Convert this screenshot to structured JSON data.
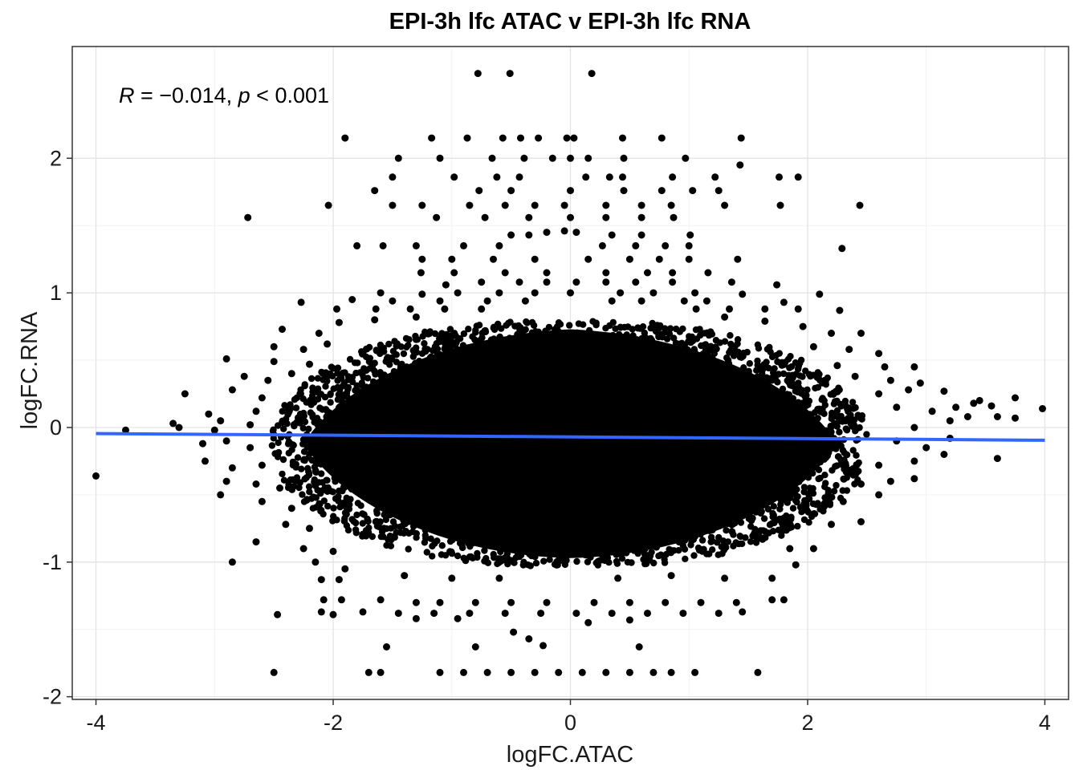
{
  "chart_data": {
    "type": "scatter",
    "title": "EPI-3h lfc ATAC v EPI-3h lfc RNA",
    "xlabel": "logFC.ATAC",
    "ylabel": "logFC.RNA",
    "xlim": [
      -4.2,
      4.2
    ],
    "ylim": [
      -2.02,
      2.83
    ],
    "x_ticks": [
      -4,
      -2,
      0,
      2,
      4
    ],
    "x_tick_labels": [
      "-4",
      "-2",
      "0",
      "2",
      "4"
    ],
    "y_ticks": [
      -2,
      -1,
      0,
      1,
      2
    ],
    "y_tick_labels": [
      "-2",
      "-1",
      "0",
      "1",
      "2"
    ],
    "grid": true,
    "point_color": "#000000",
    "fit_line": {
      "color": "#3366FF",
      "x": [
        -4.0,
        4.0
      ],
      "y": [
        -0.045,
        -0.095
      ]
    },
    "annotation": {
      "r_symbol": "R",
      "equals": " = ",
      "r_value": "−0.014",
      "sep": ", ",
      "p_symbol": "p",
      "p_text": " < 0.001"
    },
    "dense_core": {
      "description_of_values": "elliptical cloud of many thousands of points",
      "center": [
        0.0,
        -0.12
      ],
      "x_halfwidth": 2.25,
      "y_halfheight": 0.85
    },
    "points": [
      [
        -0.78,
        2.63
      ],
      [
        -0.51,
        2.63
      ],
      [
        0.18,
        2.63
      ],
      [
        -1.9,
        2.15
      ],
      [
        -1.17,
        2.15
      ],
      [
        -0.87,
        2.15
      ],
      [
        -0.57,
        2.15
      ],
      [
        -0.42,
        2.15
      ],
      [
        -0.27,
        2.15
      ],
      [
        -0.03,
        2.15
      ],
      [
        0.03,
        2.15
      ],
      [
        0.44,
        2.15
      ],
      [
        0.77,
        2.15
      ],
      [
        1.44,
        2.15
      ],
      [
        -1.45,
        2.0
      ],
      [
        -1.1,
        2.0
      ],
      [
        -0.66,
        2.0
      ],
      [
        -0.39,
        2.0
      ],
      [
        -0.15,
        2.0
      ],
      [
        0.0,
        2.0
      ],
      [
        0.15,
        2.0
      ],
      [
        0.45,
        2.0
      ],
      [
        0.97,
        2.0
      ],
      [
        1.43,
        1.95
      ],
      [
        -1.5,
        1.86
      ],
      [
        -0.98,
        1.86
      ],
      [
        -0.62,
        1.86
      ],
      [
        -0.43,
        1.86
      ],
      [
        0.13,
        1.86
      ],
      [
        0.33,
        1.86
      ],
      [
        0.44,
        1.86
      ],
      [
        0.86,
        1.86
      ],
      [
        1.22,
        1.86
      ],
      [
        1.76,
        1.86
      ],
      [
        1.92,
        1.86
      ],
      [
        -1.65,
        1.76
      ],
      [
        -0.77,
        1.76
      ],
      [
        -0.5,
        1.76
      ],
      [
        0.0,
        1.76
      ],
      [
        0.45,
        1.76
      ],
      [
        0.77,
        1.76
      ],
      [
        1.03,
        1.76
      ],
      [
        1.25,
        1.76
      ],
      [
        -2.04,
        1.65
      ],
      [
        -1.5,
        1.65
      ],
      [
        -1.25,
        1.65
      ],
      [
        -0.85,
        1.65
      ],
      [
        -0.55,
        1.65
      ],
      [
        -0.3,
        1.65
      ],
      [
        -0.05,
        1.65
      ],
      [
        0.3,
        1.65
      ],
      [
        0.6,
        1.65
      ],
      [
        0.85,
        1.65
      ],
      [
        1.3,
        1.65
      ],
      [
        1.77,
        1.65
      ],
      [
        2.44,
        1.65
      ],
      [
        -2.72,
        1.56
      ],
      [
        -1.13,
        1.56
      ],
      [
        -0.72,
        1.56
      ],
      [
        -0.35,
        1.56
      ],
      [
        0.0,
        1.56
      ],
      [
        0.3,
        1.56
      ],
      [
        0.6,
        1.56
      ],
      [
        0.87,
        1.56
      ],
      [
        -0.5,
        1.43
      ],
      [
        -0.35,
        1.43
      ],
      [
        -0.2,
        1.45
      ],
      [
        -0.05,
        1.46
      ],
      [
        0.05,
        1.45
      ],
      [
        0.35,
        1.43
      ],
      [
        0.6,
        1.43
      ],
      [
        1.01,
        1.43
      ],
      [
        -1.8,
        1.35
      ],
      [
        -1.58,
        1.35
      ],
      [
        -1.3,
        1.35
      ],
      [
        -0.9,
        1.35
      ],
      [
        -0.6,
        1.35
      ],
      [
        0.27,
        1.35
      ],
      [
        0.55,
        1.35
      ],
      [
        0.8,
        1.35
      ],
      [
        1.0,
        1.35
      ],
      [
        2.29,
        1.33
      ],
      [
        -1.25,
        1.25
      ],
      [
        -1.0,
        1.25
      ],
      [
        -0.65,
        1.25
      ],
      [
        -0.3,
        1.25
      ],
      [
        0.15,
        1.25
      ],
      [
        0.5,
        1.25
      ],
      [
        0.75,
        1.25
      ],
      [
        1.0,
        1.25
      ],
      [
        1.41,
        1.25
      ],
      [
        -1.26,
        1.15
      ],
      [
        -0.98,
        1.15
      ],
      [
        -0.55,
        1.15
      ],
      [
        -0.2,
        1.15
      ],
      [
        0.3,
        1.15
      ],
      [
        0.65,
        1.15
      ],
      [
        0.86,
        1.15
      ],
      [
        1.16,
        1.15
      ],
      [
        -1.05,
        1.06
      ],
      [
        -0.75,
        1.08
      ],
      [
        -0.43,
        1.08
      ],
      [
        -0.2,
        1.08
      ],
      [
        0.05,
        1.08
      ],
      [
        0.3,
        1.08
      ],
      [
        0.55,
        1.08
      ],
      [
        0.86,
        1.08
      ],
      [
        1.36,
        1.08
      ],
      [
        1.74,
        1.06
      ],
      [
        -1.6,
        1.0
      ],
      [
        -1.25,
        0.99
      ],
      [
        -0.95,
        1.0
      ],
      [
        -0.6,
        1.0
      ],
      [
        -0.3,
        1.0
      ],
      [
        0.0,
        1.0
      ],
      [
        0.42,
        1.0
      ],
      [
        0.7,
        1.0
      ],
      [
        1.05,
        1.0
      ],
      [
        1.45,
        0.99
      ],
      [
        2.1,
        0.99
      ],
      [
        -2.27,
        0.93
      ],
      [
        -1.84,
        0.95
      ],
      [
        -1.5,
        0.94
      ],
      [
        -1.1,
        0.94
      ],
      [
        -0.7,
        0.94
      ],
      [
        -0.38,
        0.94
      ],
      [
        0.35,
        0.94
      ],
      [
        0.6,
        0.94
      ],
      [
        0.96,
        0.94
      ],
      [
        1.15,
        0.94
      ],
      [
        1.8,
        0.93
      ],
      [
        -1.97,
        0.88
      ],
      [
        -1.64,
        0.88
      ],
      [
        -1.35,
        0.88
      ],
      [
        -1.06,
        0.88
      ],
      [
        -0.75,
        0.88
      ],
      [
        1.06,
        0.88
      ],
      [
        1.34,
        0.88
      ],
      [
        1.64,
        0.88
      ],
      [
        1.92,
        0.88
      ],
      [
        2.27,
        0.87
      ],
      [
        -2.43,
        0.73
      ],
      [
        -2.12,
        0.7
      ],
      [
        -1.95,
        0.78
      ],
      [
        -1.65,
        0.8
      ],
      [
        -1.3,
        0.82
      ],
      [
        1.3,
        0.82
      ],
      [
        1.64,
        0.79
      ],
      [
        1.96,
        0.75
      ],
      [
        2.2,
        0.7
      ],
      [
        2.45,
        0.7
      ],
      [
        -2.5,
        0.6
      ],
      [
        -2.25,
        0.58
      ],
      [
        -2.05,
        0.62
      ],
      [
        2.05,
        0.6
      ],
      [
        2.35,
        0.58
      ],
      [
        2.6,
        0.55
      ],
      [
        -2.9,
        0.51
      ],
      [
        -2.5,
        0.49
      ],
      [
        -2.2,
        0.47
      ],
      [
        2.25,
        0.46
      ],
      [
        2.65,
        0.45
      ],
      [
        2.9,
        0.45
      ],
      [
        -2.75,
        0.38
      ],
      [
        -2.55,
        0.35
      ],
      [
        -2.35,
        0.4
      ],
      [
        2.4,
        0.38
      ],
      [
        2.7,
        0.35
      ],
      [
        2.95,
        0.33
      ],
      [
        -3.25,
        0.25
      ],
      [
        -2.85,
        0.28
      ],
      [
        -2.6,
        0.22
      ],
      [
        2.6,
        0.25
      ],
      [
        2.85,
        0.28
      ],
      [
        3.15,
        0.27
      ],
      [
        3.45,
        0.2
      ],
      [
        3.75,
        0.22
      ],
      [
        -3.05,
        0.1
      ],
      [
        -2.95,
        0.05
      ],
      [
        -2.65,
        0.12
      ],
      [
        2.75,
        0.15
      ],
      [
        3.05,
        0.12
      ],
      [
        3.25,
        0.15
      ],
      [
        3.4,
        0.18
      ],
      [
        3.55,
        0.16
      ],
      [
        -3.35,
        0.03
      ],
      [
        -3.3,
        0.0
      ],
      [
        -3.0,
        -0.02
      ],
      [
        -2.7,
        0.02
      ],
      [
        2.9,
        0.0
      ],
      [
        3.2,
        0.05
      ],
      [
        3.35,
        0.08
      ],
      [
        3.6,
        0.08
      ],
      [
        3.75,
        0.07
      ],
      [
        3.98,
        0.14
      ],
      [
        -3.75,
        -0.02
      ],
      [
        -3.1,
        -0.12
      ],
      [
        -2.9,
        -0.1
      ],
      [
        -2.7,
        -0.15
      ],
      [
        2.75,
        -0.1
      ],
      [
        3.0,
        -0.15
      ],
      [
        3.2,
        -0.08
      ],
      [
        -3.08,
        -0.25
      ],
      [
        -2.85,
        -0.3
      ],
      [
        -2.6,
        -0.28
      ],
      [
        2.6,
        -0.28
      ],
      [
        2.9,
        -0.25
      ],
      [
        3.15,
        -0.2
      ],
      [
        3.6,
        -0.23
      ],
      [
        -4.0,
        -0.36
      ],
      [
        -2.9,
        -0.4
      ],
      [
        -2.65,
        -0.42
      ],
      [
        -2.45,
        -0.45
      ],
      [
        2.45,
        -0.42
      ],
      [
        2.7,
        -0.4
      ],
      [
        2.9,
        -0.38
      ],
      [
        -2.95,
        -0.5
      ],
      [
        -2.6,
        -0.55
      ],
      [
        -2.35,
        -0.6
      ],
      [
        2.3,
        -0.55
      ],
      [
        2.6,
        -0.5
      ],
      [
        -2.4,
        -0.72
      ],
      [
        -2.2,
        -0.75
      ],
      [
        2.2,
        -0.72
      ],
      [
        2.45,
        -0.7
      ],
      [
        -2.65,
        -0.85
      ],
      [
        -2.25,
        -0.9
      ],
      [
        -2.0,
        -0.92
      ],
      [
        1.85,
        -0.9
      ],
      [
        2.05,
        -0.9
      ],
      [
        -2.85,
        -1.0
      ],
      [
        -2.15,
        -1.0
      ],
      [
        -1.9,
        -1.05
      ],
      [
        1.9,
        -1.02
      ],
      [
        -2.1,
        -1.13
      ],
      [
        -1.95,
        -1.13
      ],
      [
        -1.4,
        -1.1
      ],
      [
        -1.0,
        -1.12
      ],
      [
        -0.6,
        -1.12
      ],
      [
        0.4,
        -1.12
      ],
      [
        0.85,
        -1.1
      ],
      [
        1.3,
        -1.12
      ],
      [
        1.7,
        -1.12
      ],
      [
        -2.08,
        -1.28
      ],
      [
        -1.93,
        -1.28
      ],
      [
        -1.6,
        -1.28
      ],
      [
        -1.3,
        -1.3
      ],
      [
        -1.1,
        -1.3
      ],
      [
        -0.8,
        -1.3
      ],
      [
        -0.5,
        -1.3
      ],
      [
        -0.2,
        -1.3
      ],
      [
        0.2,
        -1.3
      ],
      [
        0.5,
        -1.3
      ],
      [
        0.8,
        -1.3
      ],
      [
        1.1,
        -1.3
      ],
      [
        1.4,
        -1.3
      ],
      [
        1.7,
        -1.28
      ],
      [
        1.8,
        -1.28
      ],
      [
        -2.1,
        -1.37
      ],
      [
        -1.75,
        -1.37
      ],
      [
        -1.45,
        -1.38
      ],
      [
        -1.15,
        -1.38
      ],
      [
        -0.85,
        -1.38
      ],
      [
        -0.55,
        -1.38
      ],
      [
        -0.25,
        -1.38
      ],
      [
        0.05,
        -1.38
      ],
      [
        0.35,
        -1.38
      ],
      [
        0.65,
        -1.38
      ],
      [
        0.95,
        -1.38
      ],
      [
        1.25,
        -1.38
      ],
      [
        1.45,
        -1.37
      ],
      [
        -2.47,
        -1.39
      ],
      [
        -2.0,
        -1.39
      ],
      [
        -1.3,
        -1.42
      ],
      [
        -0.95,
        -1.42
      ],
      [
        0.15,
        -1.45
      ],
      [
        0.5,
        -1.43
      ],
      [
        -0.48,
        -1.52
      ],
      [
        -0.35,
        -1.57
      ],
      [
        -0.23,
        -1.62
      ],
      [
        -0.8,
        -1.63
      ],
      [
        0.58,
        -1.63
      ],
      [
        -1.55,
        -1.63
      ],
      [
        -2.5,
        -1.82
      ],
      [
        -1.7,
        -1.82
      ],
      [
        -1.6,
        -1.82
      ],
      [
        -1.1,
        -1.82
      ],
      [
        -0.9,
        -1.82
      ],
      [
        -0.7,
        -1.82
      ],
      [
        -0.5,
        -1.82
      ],
      [
        -0.3,
        -1.82
      ],
      [
        -0.1,
        -1.82
      ],
      [
        0.1,
        -1.82
      ],
      [
        0.3,
        -1.82
      ],
      [
        0.5,
        -1.82
      ],
      [
        0.7,
        -1.82
      ],
      [
        0.85,
        -1.82
      ],
      [
        1.05,
        -1.82
      ],
      [
        1.58,
        -1.82
      ]
    ]
  }
}
